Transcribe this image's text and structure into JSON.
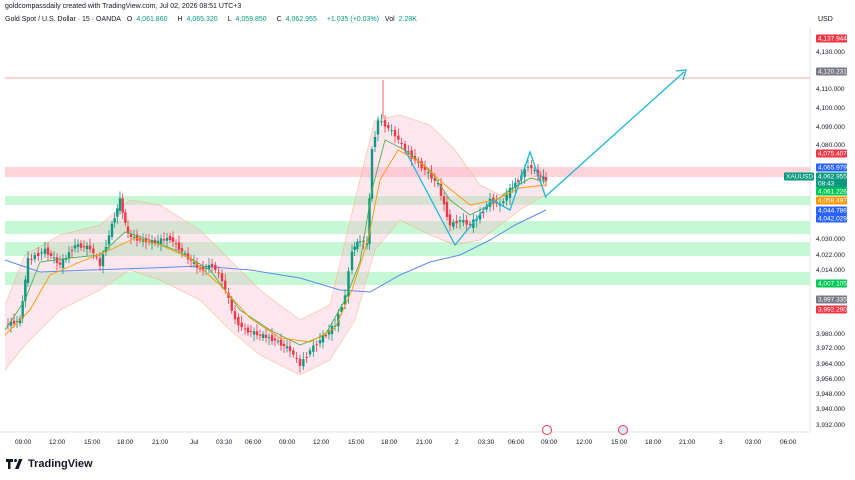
{
  "header": {
    "created_text": "goldcompassdaily created with TradingView.com, Jul 02, 2026 08:51 UTC+3",
    "symbol": "Gold Spot / U.S. Dollar · 15 · OANDA",
    "open_label": "O",
    "open": "4,061.860",
    "high_label": "H",
    "high": "4,065.320",
    "low_label": "L",
    "low": "4,059.850",
    "close_label": "C",
    "close": "4,062.955",
    "change": "+1.035 (+0.03%)",
    "vol_label": "Vol",
    "vol": "2.28K",
    "currency": "USD"
  },
  "price_axis": {
    "ticks": [
      "4,130.000",
      "4,110.000",
      "4,100.000",
      "4,090.000",
      "4,080.000",
      "4,030.000",
      "4,022.000",
      "4,014.000",
      "3,980.000",
      "3,972.000",
      "3,964.000",
      "3,956.000",
      "3,948.000",
      "3,940.000",
      "3,932.000"
    ],
    "tags": [
      {
        "text": "4,137.944",
        "color": "#f23645"
      },
      {
        "text": "4,120.231",
        "color": "#787b86"
      },
      {
        "text": "4,075.407",
        "color": "#f23645"
      },
      {
        "text": "4,065.979",
        "color": "#2962ff"
      },
      {
        "text": "XAUUSD",
        "color": "#089981"
      },
      {
        "text": "4,062.955",
        "color": "#089981"
      },
      {
        "text": "08:43",
        "color": "#089981"
      },
      {
        "text": "4,061.226",
        "color": "#00c853"
      },
      {
        "text": "4,058.497",
        "color": "#ff9800"
      },
      {
        "text": "4,044.786",
        "color": "#2962ff"
      },
      {
        "text": "4,042.029",
        "color": "#2962ff"
      },
      {
        "text": "4,007.105",
        "color": "#00c853"
      },
      {
        "text": "3,997.335",
        "color": "#787b86"
      },
      {
        "text": "3,992.290",
        "color": "#f23645"
      }
    ]
  },
  "time_axis": {
    "labels": [
      "09:00",
      "12:00",
      "15:00",
      "18:00",
      "21:00",
      "Jul",
      "03:30",
      "06:00",
      "09:00",
      "12:00",
      "15:00",
      "18:00",
      "21:00",
      "2",
      "03:30",
      "06:00",
      "09:00",
      "12:00",
      "15:00",
      "18:00",
      "21:00",
      "3",
      "03:00",
      "06:00"
    ]
  },
  "footer": {
    "brand": "TradingView"
  },
  "colors": {
    "up": "#089981",
    "down": "#f23645",
    "zone_green": "#b9f6ca",
    "zone_red": "#ffcdd2",
    "arrow": "#1fb6d8"
  }
}
